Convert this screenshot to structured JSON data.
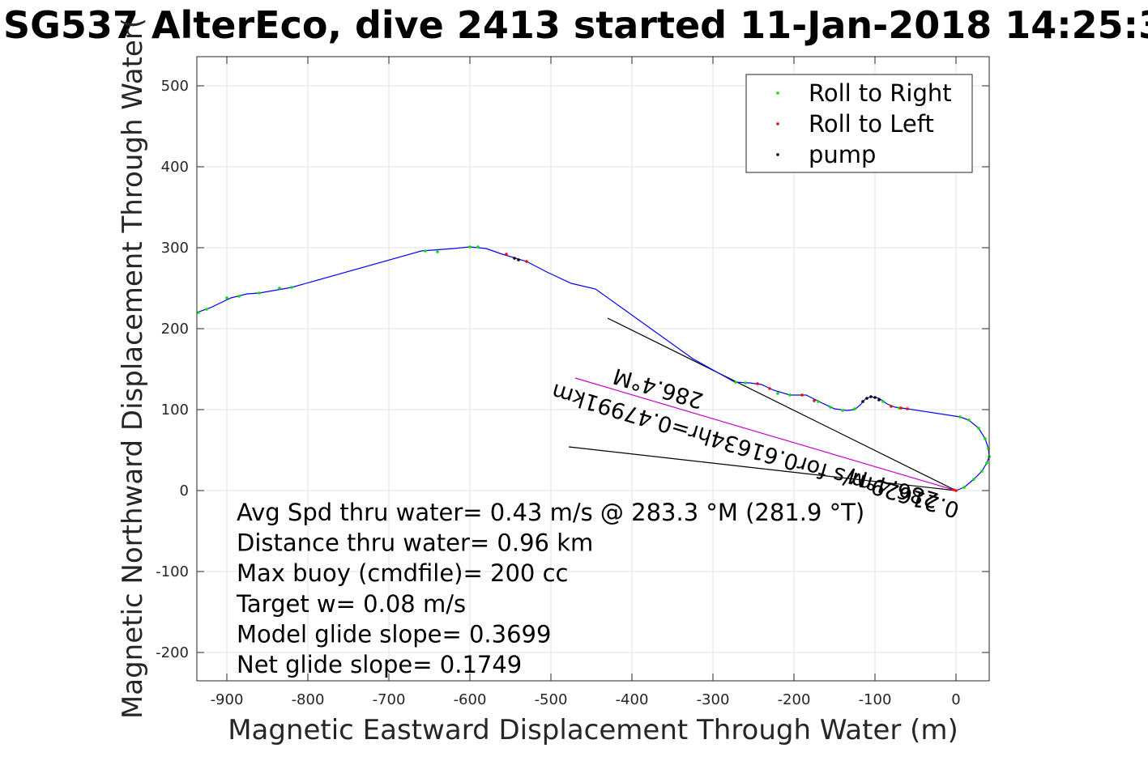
{
  "chart_data": {
    "type": "scatter",
    "title": "SG537 AlterEco, dive 2413 started 11-Jan-2018 14:25:3",
    "xlabel": "Magnetic Eastward Displacement Through Water (m)",
    "ylabel": "Magnetic Northward Displacement Through Water(",
    "xlim": [
      -937,
      41
    ],
    "ylim": [
      -235,
      536
    ],
    "xticks": [
      -900,
      -800,
      -700,
      -600,
      -500,
      -400,
      -300,
      -200,
      -100,
      0
    ],
    "yticks": [
      -200,
      -100,
      0,
      100,
      200,
      300,
      400,
      500
    ],
    "grid": true,
    "legend_position": "top-right",
    "legend": [
      {
        "label": "Roll to Right",
        "color": "#00dd00"
      },
      {
        "label": "Roll to Left",
        "color": "#ff0000"
      },
      {
        "label": "pump",
        "color": "#000000"
      }
    ],
    "track_color": "#0000ff",
    "track": [
      [
        0,
        0
      ],
      [
        10,
        4
      ],
      [
        22,
        14
      ],
      [
        32,
        24
      ],
      [
        38,
        34
      ],
      [
        41,
        42
      ],
      [
        40,
        52
      ],
      [
        36,
        64
      ],
      [
        28,
        77
      ],
      [
        16,
        87
      ],
      [
        5,
        91
      ],
      [
        -60,
        101
      ],
      [
        -75,
        103
      ],
      [
        -85,
        107
      ],
      [
        -95,
        114
      ],
      [
        -105,
        116
      ],
      [
        -112,
        113
      ],
      [
        -118,
        106
      ],
      [
        -125,
        100
      ],
      [
        -135,
        99
      ],
      [
        -150,
        101
      ],
      [
        -165,
        108
      ],
      [
        -185,
        118
      ],
      [
        -205,
        118
      ],
      [
        -225,
        124
      ],
      [
        -240,
        131
      ],
      [
        -255,
        133
      ],
      [
        -273,
        134
      ],
      [
        -325,
        163
      ],
      [
        -445,
        249
      ],
      [
        -475,
        256
      ],
      [
        -505,
        270
      ],
      [
        -530,
        283
      ],
      [
        -560,
        292
      ],
      [
        -580,
        299
      ],
      [
        -600,
        301
      ],
      [
        -620,
        299
      ],
      [
        -660,
        296
      ],
      [
        -820,
        251
      ],
      [
        -860,
        244
      ],
      [
        -875,
        243
      ],
      [
        -895,
        238
      ],
      [
        -920,
        226
      ],
      [
        -937,
        220
      ]
    ],
    "roll_right_points": [
      [
        5,
        91
      ],
      [
        16,
        87
      ],
      [
        28,
        77
      ],
      [
        36,
        64
      ],
      [
        40,
        52
      ],
      [
        41,
        42
      ],
      [
        38,
        34
      ],
      [
        32,
        24
      ],
      [
        22,
        14
      ],
      [
        10,
        4
      ],
      [
        -70,
        102
      ],
      [
        -90,
        110
      ],
      [
        -125,
        101
      ],
      [
        -140,
        99
      ],
      [
        -155,
        103
      ],
      [
        -170,
        110
      ],
      [
        -205,
        118
      ],
      [
        -220,
        120
      ],
      [
        -260,
        133
      ],
      [
        -272,
        134
      ],
      [
        -640,
        295
      ],
      [
        -655,
        296
      ],
      [
        -590,
        301
      ],
      [
        -600,
        301
      ],
      [
        -820,
        251
      ],
      [
        -835,
        250
      ],
      [
        -860,
        244
      ],
      [
        -885,
        240
      ],
      [
        -900,
        238
      ],
      [
        -925,
        224
      ],
      [
        -935,
        220
      ]
    ],
    "roll_left_points": [
      [
        0,
        0
      ],
      [
        -3,
        1
      ],
      [
        -60,
        101
      ],
      [
        -68,
        102
      ],
      [
        -80,
        104
      ],
      [
        -175,
        111
      ],
      [
        -190,
        118
      ],
      [
        -230,
        126
      ],
      [
        -245,
        132
      ],
      [
        -530,
        283
      ],
      [
        -555,
        292
      ]
    ],
    "pump_points": [
      [
        -95,
        112
      ],
      [
        -100,
        115
      ],
      [
        -105,
        116
      ],
      [
        -110,
        114
      ],
      [
        -115,
        110
      ],
      [
        -540,
        285
      ],
      [
        -545,
        287
      ]
    ],
    "reference_lines": [
      {
        "x": [
          0,
          -430
        ],
        "y": [
          0,
          213
        ]
      },
      {
        "x": [
          0,
          -478
        ],
        "y": [
          0,
          54
        ]
      }
    ],
    "magenta_line": {
      "x": [
        0,
        -470
      ],
      "y": [
        0,
        139
      ],
      "color": "#cc00cc"
    },
    "rotated_labels": [
      "286.4°M",
      "0.21629m/s for0.61634hr=0.47991km"
    ],
    "annotations": [
      "Avg Spd thru water=  0.43 m/s @ 283.3 °M (281.9 °T)",
      "Distance thru water=  0.96 km",
      "Max buoy (cmdfile)= 200 cc",
      "Target w= 0.08 m/s",
      "Model glide slope= 0.3699",
      "Net glide slope= 0.1749"
    ]
  }
}
